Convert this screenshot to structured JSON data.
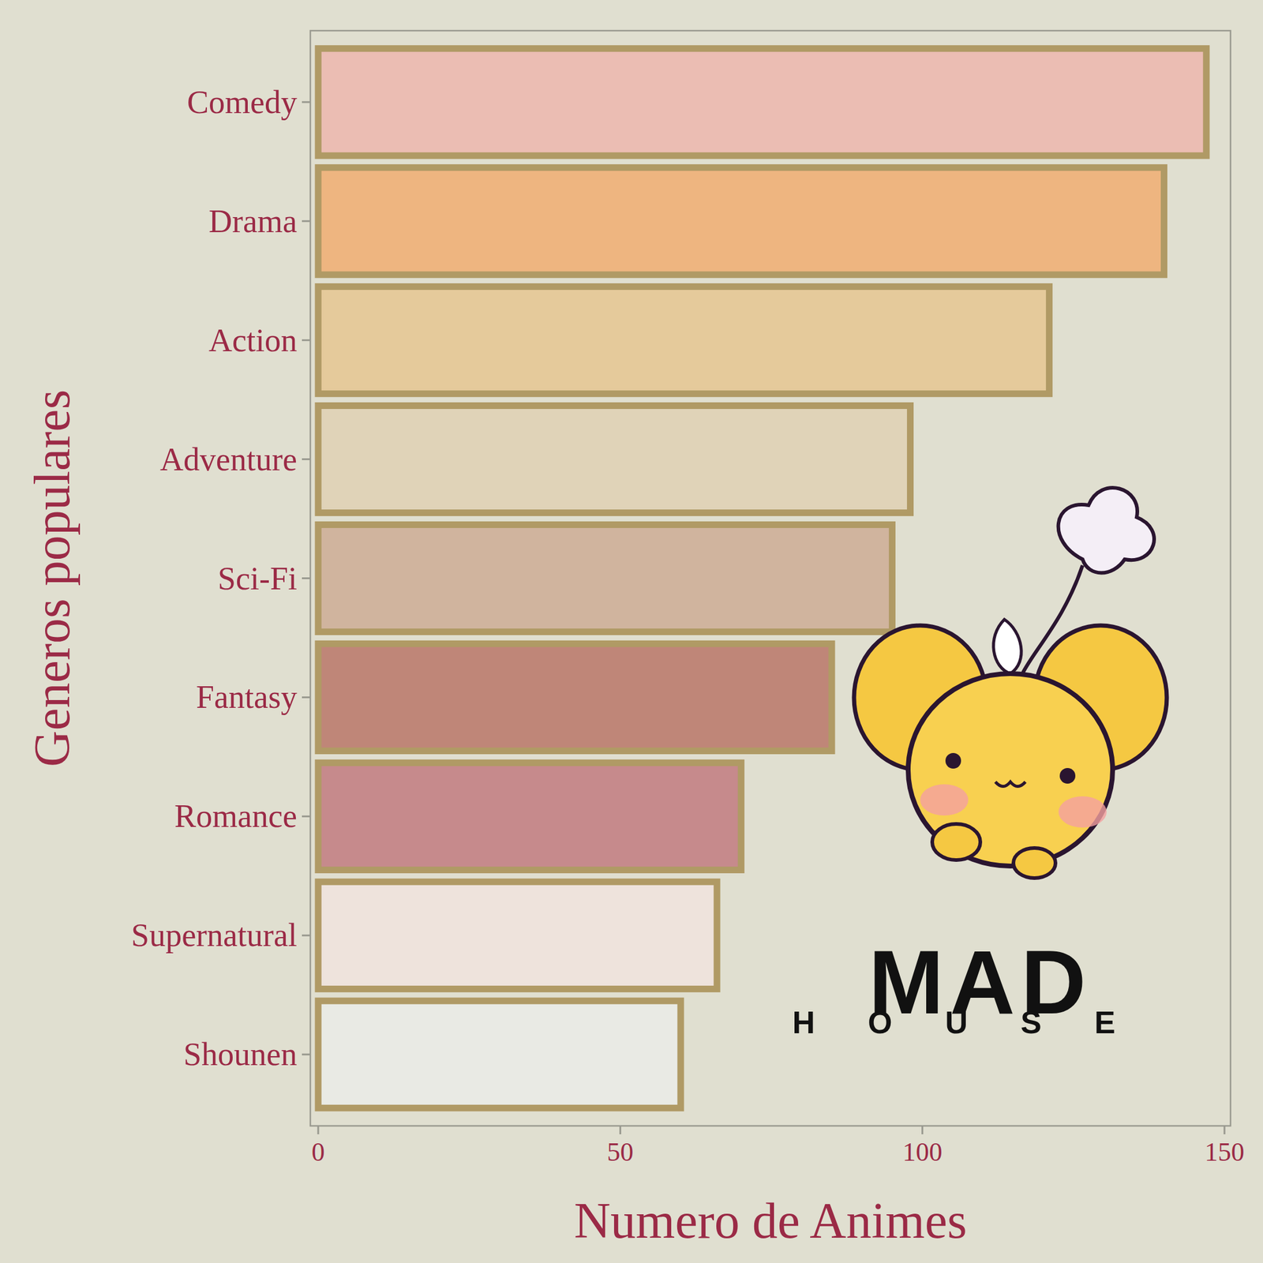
{
  "chart_data": {
    "type": "bar",
    "orientation": "horizontal",
    "x_label": "Numero de Animes",
    "y_label": "Generos populares",
    "categories": [
      "Comedy",
      "Drama",
      "Action",
      "Adventure",
      "Sci-Fi",
      "Fantasy",
      "Romance",
      "Supernatural",
      "Shounen"
    ],
    "values": [
      147,
      140,
      121,
      98,
      95,
      85,
      70,
      66,
      60
    ],
    "colors": [
      "#ebbdb3",
      "#eeb580",
      "#e5ca9b",
      "#e0d3b8",
      "#d0b49e",
      "#bf8678",
      "#c68a8c",
      "#eee3dc",
      "#e9eae4"
    ],
    "xlim": [
      -1.3,
      151
    ],
    "xticks": [
      0,
      50,
      100,
      150
    ],
    "grid": false,
    "logo": [
      "MAD",
      "HOUSE"
    ]
  }
}
